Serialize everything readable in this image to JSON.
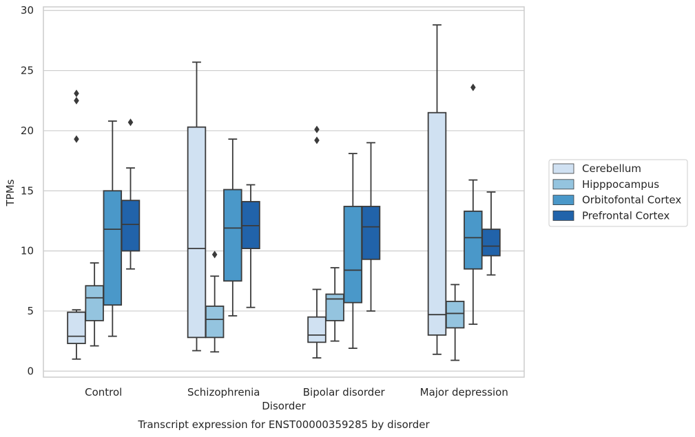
{
  "caption": "Transcript expression for ENST00000359285 by disorder",
  "chart_data": {
    "type": "box",
    "title": "",
    "xlabel": "Disorder",
    "ylabel": "TPMs",
    "ylim": [
      -0.5,
      30.3
    ],
    "yticks": [
      0,
      5,
      10,
      15,
      20,
      25,
      30
    ],
    "grid": "horizontal",
    "legend_position": "right",
    "categories": [
      "Control",
      "Schizophrenia",
      "Bipolar disorder",
      "Major depression"
    ],
    "series": [
      {
        "name": "Cerebellum",
        "color": "#d0e1f2",
        "boxes": [
          {
            "whisker_low": 1.0,
            "q1": 2.3,
            "median": 2.9,
            "q3": 4.9,
            "whisker_high": 5.1,
            "outliers": [
              19.3,
              22.5,
              23.1
            ]
          },
          {
            "whisker_low": 1.7,
            "q1": 2.8,
            "median": 10.2,
            "q3": 20.3,
            "whisker_high": 25.7,
            "outliers": []
          },
          {
            "whisker_low": 1.1,
            "q1": 2.4,
            "median": 3.0,
            "q3": 4.5,
            "whisker_high": 6.8,
            "outliers": [
              19.2,
              20.1
            ]
          },
          {
            "whisker_low": 1.4,
            "q1": 3.0,
            "median": 4.7,
            "q3": 21.5,
            "whisker_high": 28.8,
            "outliers": []
          }
        ]
      },
      {
        "name": "Hipppocampus",
        "color": "#94c4df",
        "boxes": [
          {
            "whisker_low": 2.1,
            "q1": 4.2,
            "median": 6.1,
            "q3": 7.1,
            "whisker_high": 9.0,
            "outliers": []
          },
          {
            "whisker_low": 1.6,
            "q1": 2.8,
            "median": 4.3,
            "q3": 5.4,
            "whisker_high": 7.9,
            "outliers": [
              9.7
            ]
          },
          {
            "whisker_low": 2.5,
            "q1": 4.2,
            "median": 6.0,
            "q3": 6.4,
            "whisker_high": 8.6,
            "outliers": []
          },
          {
            "whisker_low": 0.9,
            "q1": 3.6,
            "median": 4.8,
            "q3": 5.8,
            "whisker_high": 7.2,
            "outliers": []
          }
        ]
      },
      {
        "name": "Orbitofontal Cortex",
        "color": "#4a98c9",
        "boxes": [
          {
            "whisker_low": 2.9,
            "q1": 5.5,
            "median": 11.8,
            "q3": 15.0,
            "whisker_high": 20.8,
            "outliers": []
          },
          {
            "whisker_low": 4.6,
            "q1": 7.5,
            "median": 11.9,
            "q3": 15.1,
            "whisker_high": 19.3,
            "outliers": []
          },
          {
            "whisker_low": 1.9,
            "q1": 5.7,
            "median": 8.4,
            "q3": 13.7,
            "whisker_high": 18.1,
            "outliers": []
          },
          {
            "whisker_low": 3.9,
            "q1": 8.5,
            "median": 11.1,
            "q3": 13.3,
            "whisker_high": 15.9,
            "outliers": [
              23.6
            ]
          }
        ]
      },
      {
        "name": "Prefrontal Cortex",
        "color": "#2163aa",
        "boxes": [
          {
            "whisker_low": 8.5,
            "q1": 10.0,
            "median": 12.2,
            "q3": 14.2,
            "whisker_high": 16.9,
            "outliers": [
              20.7
            ]
          },
          {
            "whisker_low": 5.3,
            "q1": 10.2,
            "median": 12.1,
            "q3": 14.1,
            "whisker_high": 15.5,
            "outliers": []
          },
          {
            "whisker_low": 5.0,
            "q1": 9.3,
            "median": 12.0,
            "q3": 13.7,
            "whisker_high": 19.0,
            "outliers": []
          },
          {
            "whisker_low": 8.0,
            "q1": 9.6,
            "median": 10.4,
            "q3": 11.8,
            "whisker_high": 14.9,
            "outliers": []
          }
        ]
      }
    ]
  }
}
